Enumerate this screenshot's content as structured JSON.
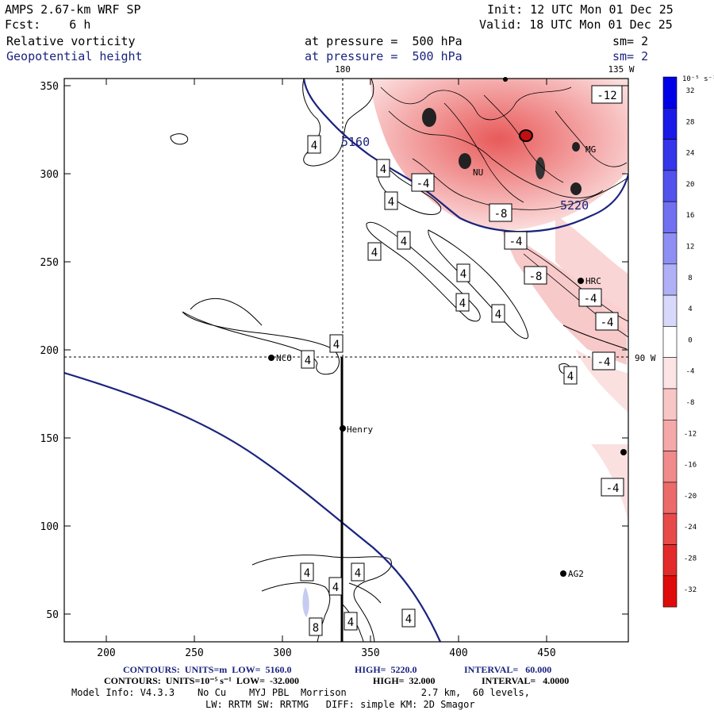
{
  "header": {
    "model": "AMPS 2.67-km WRF SP",
    "init": "Init: 12 UTC Mon 01 Dec 25",
    "fcst": "Fcst:    6 h",
    "valid": "Valid: 18 UTC Mon 01 Dec 25",
    "field1": "Relative vorticity",
    "field1_level": "at pressure =  500 hPa",
    "field1_sm": "sm= 2",
    "field2": "Geopotential height",
    "field2_level": "at pressure =  500 hPa",
    "field2_sm": "sm= 2"
  },
  "map": {
    "lon_180": "180",
    "lon_135w": "135 W",
    "lon_90w": "90 W",
    "y_ticks": [
      "50",
      "100",
      "150",
      "200",
      "250",
      "300",
      "350"
    ],
    "x_ticks": [
      "200",
      "250",
      "300",
      "350",
      "400",
      "450"
    ],
    "stations": [
      "NCO",
      "Henry",
      "HRC",
      "AG2",
      "MG",
      "NU"
    ],
    "height_labels": [
      "5160",
      "5220"
    ],
    "contour_labels_pos": [
      "4",
      "4",
      "4",
      "4",
      "4",
      "4",
      "4",
      "4",
      "4",
      "4",
      "4",
      "4",
      "4",
      "4",
      "4",
      "4",
      "4",
      "8"
    ],
    "contour_labels_neg": [
      "-4",
      "-4",
      "-4",
      "-4",
      "-4",
      "-4",
      "-8",
      "-8",
      "-12"
    ]
  },
  "colorbar": {
    "units": "10⁻⁵ s⁻¹",
    "labels": [
      "32",
      "28",
      "24",
      "20",
      "16",
      "12",
      "8",
      "4",
      "0",
      "-4",
      "-8",
      "-12",
      "-16",
      "-20",
      "-24",
      "-28",
      "-32"
    ],
    "colors": [
      "#0000e6",
      "#1a1ae8",
      "#3535ea",
      "#5252ed",
      "#7070f0",
      "#8e8ef3",
      "#b0b0f6",
      "#d8d8fb",
      "#ffffff",
      "#fde4e4",
      "#f9c6c6",
      "#f5a8a8",
      "#f18a8a",
      "#ec6a6a",
      "#e84a4a",
      "#e32a2a",
      "#df0b0b"
    ]
  },
  "footer": {
    "line1_a": "CONTOURS:  UNITS=m  LOW=  5160.0",
    "line1_b": "HIGH=  5220.0",
    "line1_c": "INTERVAL=   60.000",
    "line2_a": "CONTOURS:  UNITS=10⁻⁵ s⁻¹  LOW=  -32.000",
    "line2_b": "HIGH=  32.000",
    "line2_c": "INTERVAL=   4.0000",
    "line3": "Model Info: V4.3.3    No Cu    MYJ PBL  Morrison             2.7 km,  60 levels,",
    "line4": "LW: RRTM SW: RRTMG   DIFF: simple KM: 2D Smagor"
  }
}
